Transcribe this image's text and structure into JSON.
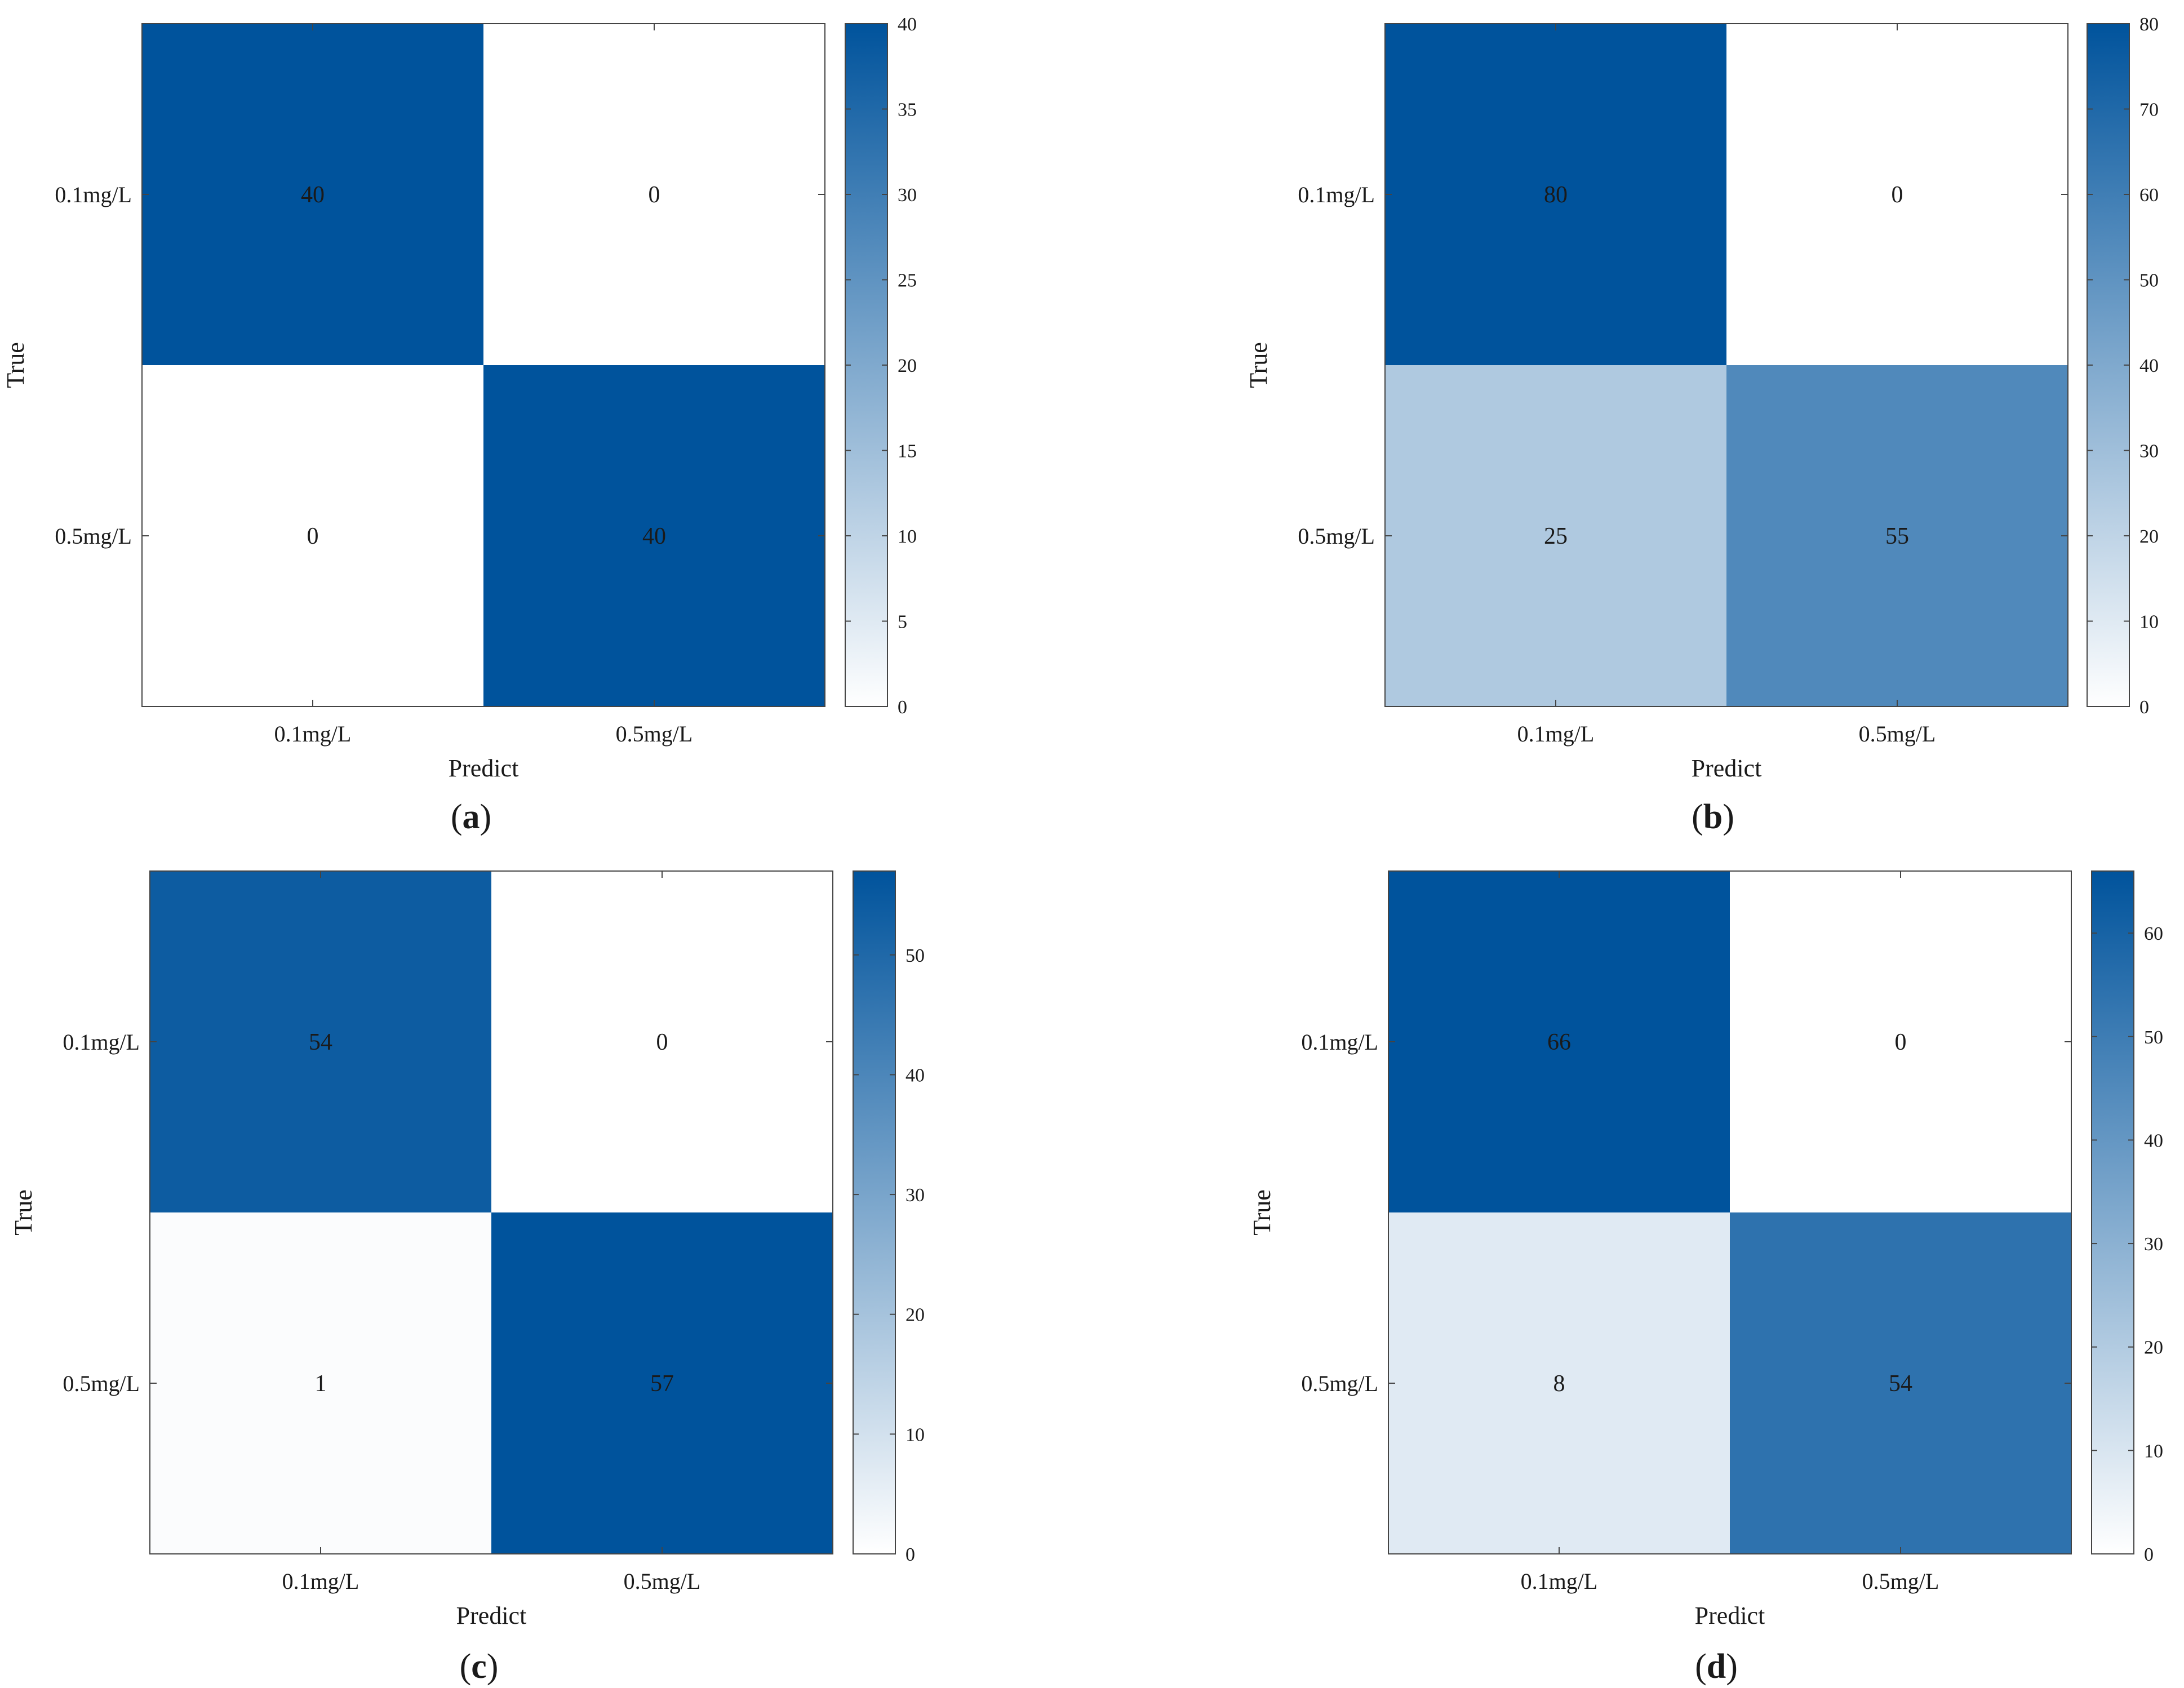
{
  "figure": {
    "panels_caption": [
      "a",
      "b",
      "c",
      "d"
    ]
  },
  "chart_data": [
    {
      "panel": "a",
      "type": "heatmap",
      "title": "",
      "xlabel": "Predict",
      "ylabel": "True",
      "x_categories": [
        "0.1mg/L",
        "0.5mg/L"
      ],
      "y_categories": [
        "0.1mg/L",
        "0.5mg/L"
      ],
      "matrix": [
        [
          40,
          0
        ],
        [
          0,
          40
        ]
      ],
      "colorbar": {
        "min": 0,
        "max": 40,
        "ticks": [
          0,
          5,
          10,
          15,
          20,
          25,
          30,
          35,
          40
        ]
      },
      "colormap": {
        "low": "#ffffff",
        "high": "#00539c"
      }
    },
    {
      "panel": "b",
      "type": "heatmap",
      "title": "",
      "xlabel": "Predict",
      "ylabel": "True",
      "x_categories": [
        "0.1mg/L",
        "0.5mg/L"
      ],
      "y_categories": [
        "0.1mg/L",
        "0.5mg/L"
      ],
      "matrix": [
        [
          80,
          0
        ],
        [
          25,
          55
        ]
      ],
      "colorbar": {
        "min": 0,
        "max": 80,
        "ticks": [
          0,
          10,
          20,
          30,
          40,
          50,
          60,
          70,
          80
        ]
      },
      "colormap": {
        "low": "#ffffff",
        "high": "#00539c"
      }
    },
    {
      "panel": "c",
      "type": "heatmap",
      "title": "",
      "xlabel": "Predict",
      "ylabel": "True",
      "x_categories": [
        "0.1mg/L",
        "0.5mg/L"
      ],
      "y_categories": [
        "0.1mg/L",
        "0.5mg/L"
      ],
      "matrix": [
        [
          54,
          0
        ],
        [
          1,
          57
        ]
      ],
      "colorbar": {
        "min": 0,
        "max": 57,
        "ticks": [
          0,
          10,
          20,
          30,
          40,
          50
        ]
      },
      "colormap": {
        "low": "#ffffff",
        "high": "#00539c"
      }
    },
    {
      "panel": "d",
      "type": "heatmap",
      "title": "",
      "xlabel": "Predict",
      "ylabel": "True",
      "x_categories": [
        "0.1mg/L",
        "0.5mg/L"
      ],
      "y_categories": [
        "0.1mg/L",
        "0.5mg/L"
      ],
      "matrix": [
        [
          66,
          0
        ],
        [
          8,
          54
        ]
      ],
      "colorbar": {
        "min": 0,
        "max": 66,
        "ticks": [
          0,
          10,
          20,
          30,
          40,
          50,
          60
        ]
      },
      "colormap": {
        "low": "#ffffff",
        "high": "#00539c"
      }
    }
  ]
}
